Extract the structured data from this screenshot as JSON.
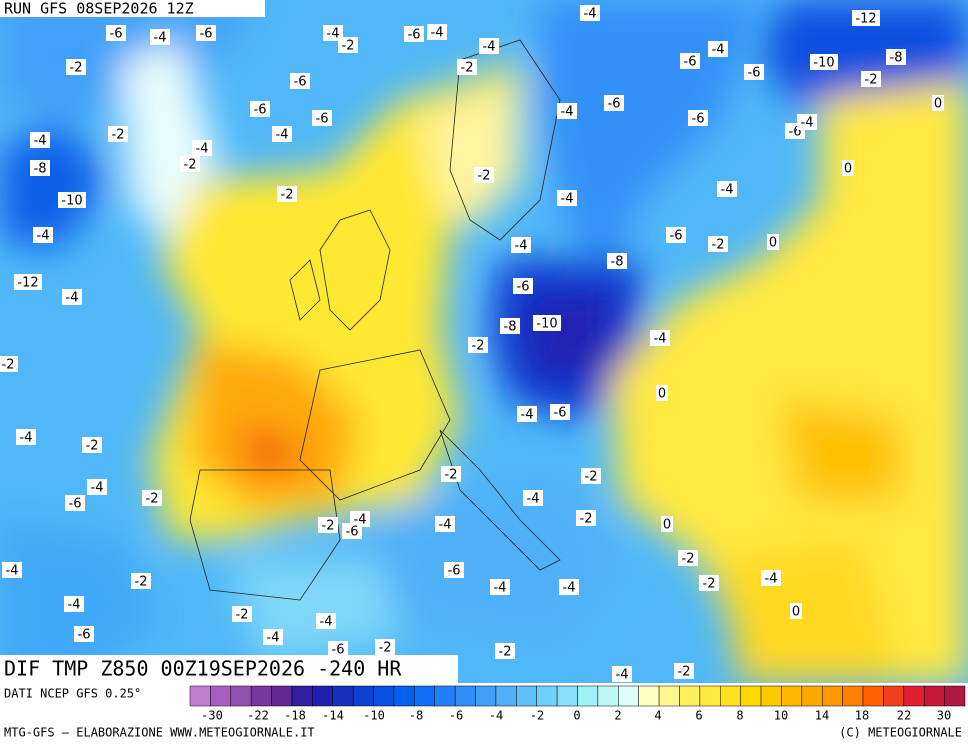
{
  "header": {
    "run": "RUN GFS 08SEP2026 12Z"
  },
  "footer": {
    "title": "DIF TMP Z850 00Z19SEP2026 -240 HR",
    "source": "DATI NCEP GFS 0.25°",
    "credit_left": "MTG-GFS — ELABORAZIONE WWW.METEOGIORNALE.IT",
    "credit_right": "(C) METEOGIORNALE"
  },
  "colorbar": {
    "colors": [
      "#c080d0",
      "#a860c0",
      "#9050b0",
      "#7838a0",
      "#602890",
      "#3020a0",
      "#2020b0",
      "#1830c0",
      "#1040d0",
      "#0850e0",
      "#0060f0",
      "#1070f8",
      "#2080f8",
      "#3090f8",
      "#40a0f8",
      "#50b0f8",
      "#60c0f8",
      "#70d0f8",
      "#88e0f8",
      "#a0f0f8",
      "#c0f8f8",
      "#e0fcfc",
      "#fffcc0",
      "#fff890",
      "#fff060",
      "#ffe840",
      "#ffe020",
      "#ffd800",
      "#ffc800",
      "#ffb800",
      "#ffa800",
      "#ff9800",
      "#ff8000",
      "#ff6000",
      "#f04020",
      "#e02030",
      "#c81838",
      "#b01840"
    ],
    "ticks": [
      -30,
      -22,
      -18,
      -14,
      -10,
      -8,
      -6,
      -4,
      -2,
      0,
      2,
      4,
      6,
      8,
      10,
      14,
      18,
      22,
      30
    ]
  },
  "contour_labels": [
    -6,
    -4,
    -6,
    -4,
    -2,
    -6,
    -4,
    -4,
    -4,
    -4,
    -12,
    -2,
    -6,
    -2,
    -6,
    -6,
    -10,
    -8,
    -2,
    0,
    -6,
    -6,
    -6,
    -4,
    -6,
    -6,
    -4,
    -4,
    -2,
    -4,
    -4,
    -2,
    -8,
    0,
    -2,
    -10,
    -2,
    -4,
    -4,
    -4,
    -4,
    -6,
    -2,
    0,
    -8,
    -12,
    -4,
    -6,
    -8,
    -10,
    -2,
    -4,
    -2,
    0,
    -4,
    -6,
    -4,
    -2,
    -2,
    -2,
    -4,
    -2,
    -4,
    -6,
    -4,
    -2,
    -6,
    -4,
    -2,
    0,
    -4,
    -6,
    -2,
    -2,
    -4,
    -4,
    -2,
    -4,
    -4,
    0,
    -2,
    -4,
    -6,
    -4,
    -6,
    -2,
    -2,
    -4,
    -2
  ]
}
